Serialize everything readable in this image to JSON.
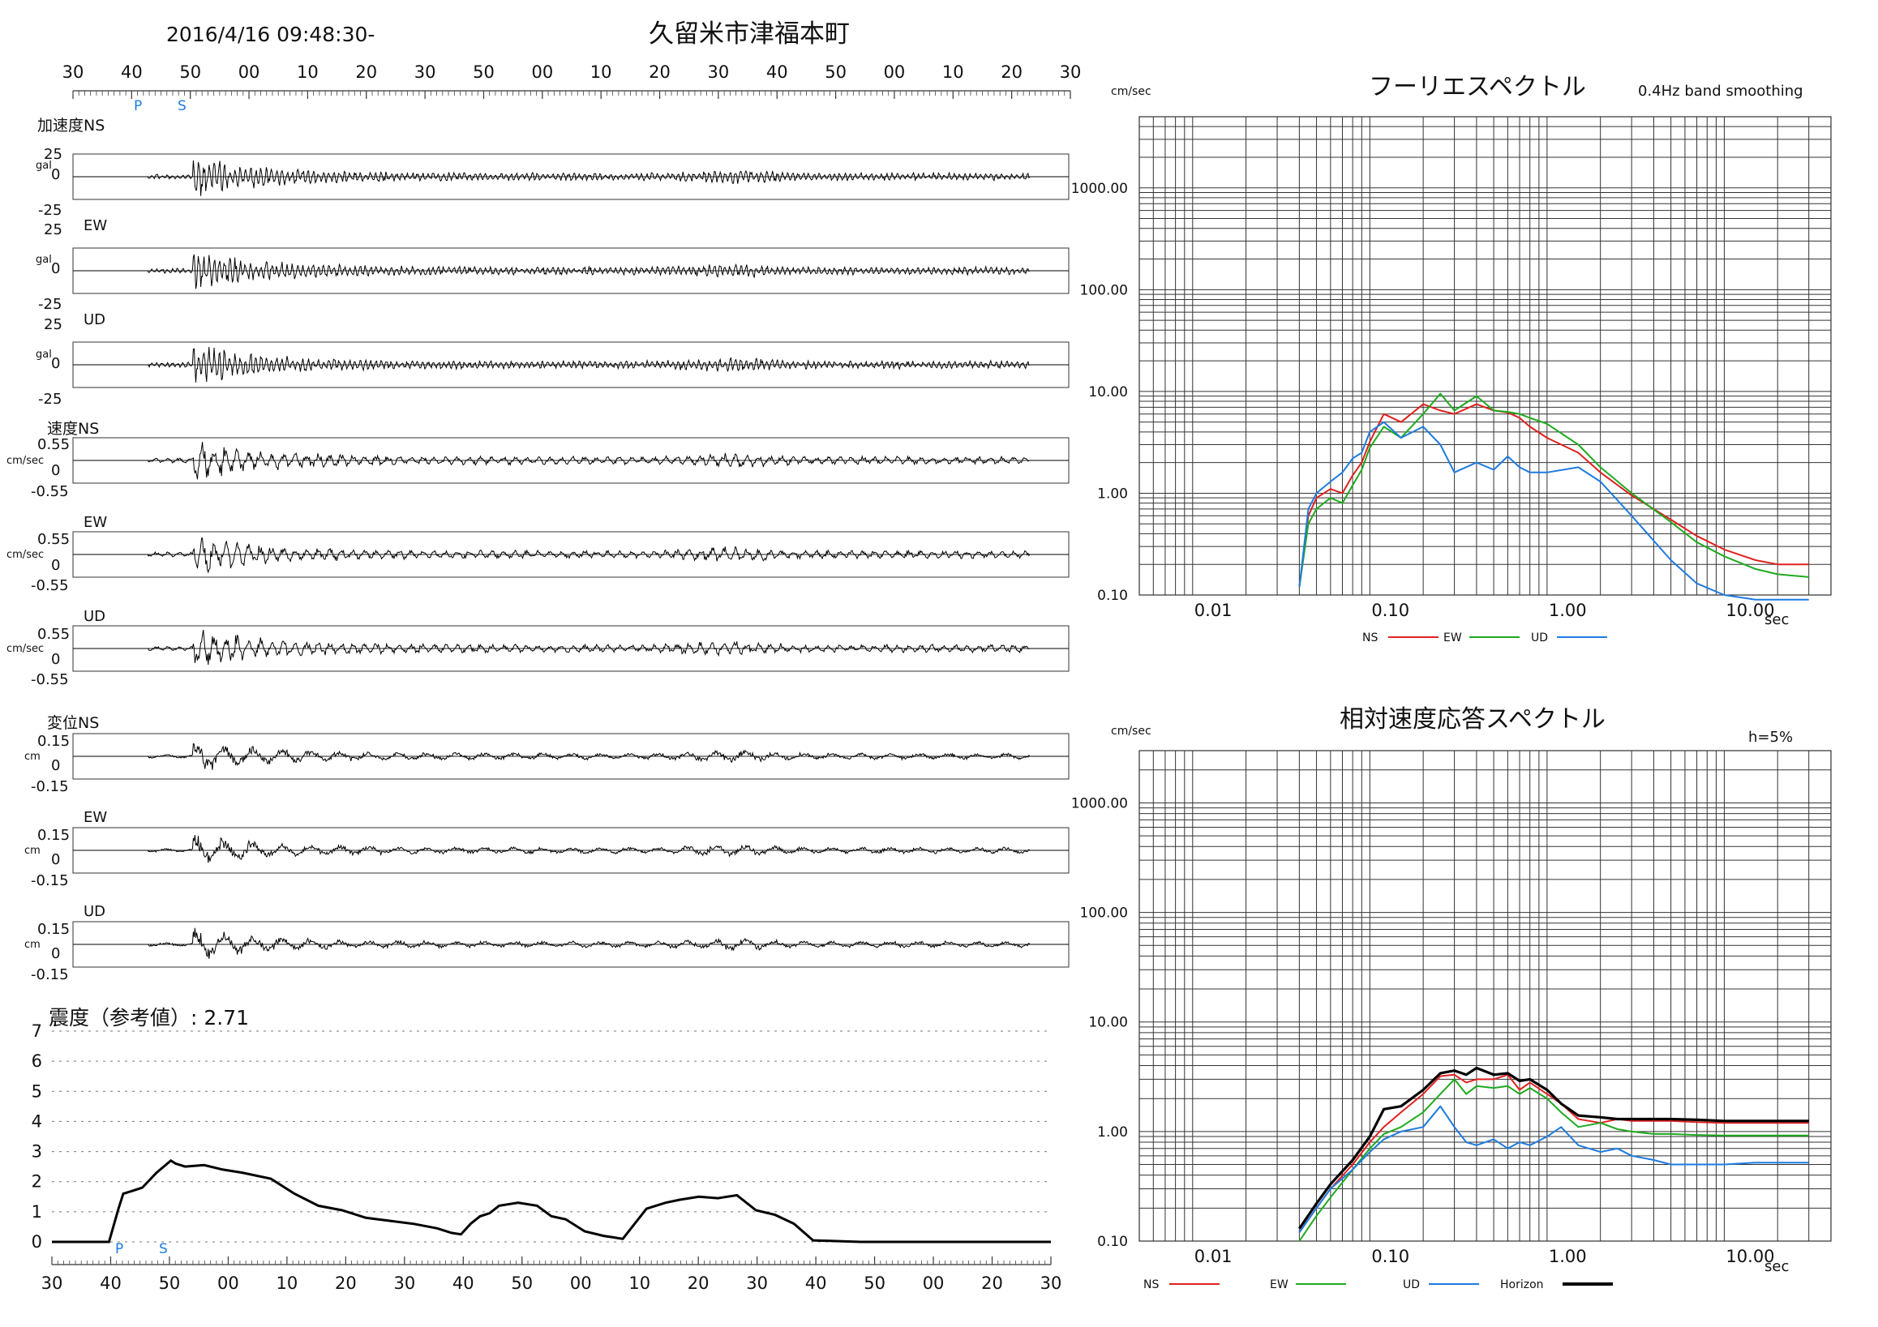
{
  "header": {
    "datetime": "2016/4/16 09:48:30-",
    "station": "久留米市津福本町",
    "p_marker": "P",
    "s_marker": "S",
    "time_ticks": [
      "30",
      "40",
      "50",
      "00",
      "10",
      "20",
      "30",
      "50",
      "00",
      "10",
      "20",
      "30",
      "40",
      "50",
      "00",
      "10",
      "20",
      "30"
    ]
  },
  "waveforms": {
    "groups": [
      {
        "title": "加速度NS",
        "unit": "gal",
        "ticks": [
          "25",
          "0",
          "-25"
        ],
        "channels": [
          "NS",
          "EW",
          "UD"
        ]
      },
      {
        "title": "速度NS",
        "unit": "cm/sec",
        "ticks": [
          "0.55",
          "0",
          "-0.55"
        ],
        "channels": [
          "NS",
          "EW",
          "UD"
        ]
      },
      {
        "title": "変位NS",
        "unit": "cm",
        "ticks": [
          "0.15",
          "0",
          "-0.15"
        ],
        "channels": [
          "NS",
          "EW",
          "UD"
        ]
      }
    ],
    "channel_labels": [
      "EW",
      "UD"
    ]
  },
  "intensity": {
    "title": "震度（参考値）: 2.71",
    "y_ticks": [
      "7",
      "6",
      "5",
      "4",
      "3",
      "2",
      "1",
      "0"
    ],
    "x_ticks": [
      "30",
      "40",
      "50",
      "00",
      "10",
      "20",
      "30",
      "40",
      "50",
      "00",
      "10",
      "20",
      "30",
      "40",
      "50",
      "00",
      "20",
      "30"
    ],
    "p_marker": "P",
    "s_marker": "S"
  },
  "fourier": {
    "title": "フーリエスペクトル",
    "note": "0.4Hz band smoothing",
    "yunit": "cm/sec",
    "xunit": "sec",
    "y_ticks": [
      "1000.00",
      "100.00",
      "10.00",
      "1.00",
      "0.10"
    ],
    "x_ticks": [
      "0.01",
      "0.10",
      "1.00",
      "10.00"
    ],
    "legend": [
      {
        "name": "NS",
        "color": "#e02020"
      },
      {
        "name": "EW",
        "color": "#1faa1f"
      },
      {
        "name": "UD",
        "color": "#1e7be0"
      }
    ]
  },
  "response": {
    "title": "相対速度応答スペクトル",
    "note": "h=5%",
    "yunit": "cm/sec",
    "xunit": "sec",
    "y_ticks": [
      "1000.00",
      "100.00",
      "10.00",
      "1.00",
      "0.10"
    ],
    "x_ticks": [
      "0.01",
      "0.10",
      "1.00",
      "10.00"
    ],
    "legend": [
      {
        "name": "NS",
        "color": "#e02020"
      },
      {
        "name": "EW",
        "color": "#1faa1f"
      },
      {
        "name": "UD",
        "color": "#1e7be0"
      },
      {
        "name": "Horizon",
        "color": "#000000"
      }
    ]
  },
  "chart_data": [
    {
      "type": "line",
      "title": "震度（参考値）: 2.71",
      "ylim": [
        0,
        7
      ],
      "series": [
        {
          "x": [
            0,
            10,
            12,
            14,
            15,
            17,
            19,
            22,
            25,
            26,
            28,
            32,
            36,
            40,
            46,
            51,
            56,
            61,
            66,
            71,
            76,
            81,
            84,
            86,
            88,
            90,
            92,
            94,
            98,
            102,
            105,
            108,
            112,
            116,
            118,
            120,
            125,
            129,
            132,
            136,
            140,
            144,
            148,
            152,
            156,
            160,
            170,
            178,
            190,
            210
          ],
          "values": [
            0,
            0,
            0,
            1.1,
            1.6,
            1.7,
            1.8,
            2.3,
            2.7,
            2.6,
            2.5,
            2.55,
            2.4,
            2.3,
            2.1,
            1.6,
            1.2,
            1.05,
            0.8,
            0.7,
            0.6,
            0.45,
            0.3,
            0.25,
            0.6,
            0.85,
            0.95,
            1.2,
            1.3,
            1.2,
            0.85,
            0.75,
            0.35,
            0.2,
            0.15,
            0.1,
            1.1,
            1.3,
            1.4,
            1.5,
            1.45,
            1.55,
            1.05,
            0.9,
            0.6,
            0.05,
            0,
            0,
            0,
            0
          ]
        }
      ]
    },
    {
      "type": "line",
      "title": "フーリエスペクトル",
      "xlabel": "sec",
      "ylabel": "cm/sec",
      "xscale": "log",
      "yscale": "log",
      "xlim": [
        0.005,
        40
      ],
      "ylim": [
        0.1,
        5000
      ],
      "x": [
        0.04,
        0.045,
        0.05,
        0.06,
        0.07,
        0.08,
        0.09,
        0.1,
        0.12,
        0.15,
        0.2,
        0.25,
        0.3,
        0.4,
        0.5,
        0.6,
        0.7,
        0.8,
        1.0,
        1.5,
        2,
        3,
        5,
        7,
        10,
        15,
        20,
        30
      ],
      "series": [
        {
          "name": "NS",
          "color": "#e02020",
          "values": [
            0.12,
            0.6,
            0.9,
            1.1,
            1.0,
            1.5,
            2.0,
            3.2,
            6.0,
            5.0,
            7.5,
            6.5,
            6.0,
            7.5,
            6.5,
            6.2,
            5.5,
            4.5,
            3.5,
            2.5,
            1.6,
            0.95,
            0.55,
            0.38,
            0.28,
            0.22,
            0.2,
            0.2
          ]
        },
        {
          "name": "EW",
          "color": "#1faa1f",
          "values": [
            0.12,
            0.5,
            0.7,
            0.9,
            0.8,
            1.2,
            1.7,
            2.8,
            4.5,
            3.5,
            6.0,
            9.5,
            6.5,
            9.0,
            6.5,
            6.3,
            6.0,
            5.5,
            4.8,
            3.0,
            1.8,
            1.0,
            0.52,
            0.33,
            0.24,
            0.18,
            0.16,
            0.15
          ]
        },
        {
          "name": "UD",
          "color": "#1e7be0",
          "values": [
            0.12,
            0.7,
            1.0,
            1.3,
            1.6,
            2.2,
            2.5,
            4.0,
            5.0,
            3.5,
            4.5,
            3.0,
            1.6,
            2.0,
            1.7,
            2.3,
            1.8,
            1.6,
            1.6,
            1.8,
            1.3,
            0.6,
            0.22,
            0.13,
            0.1,
            0.09,
            0.09,
            0.09
          ]
        }
      ]
    },
    {
      "type": "line",
      "title": "相対速度応答スペクトル",
      "xlabel": "sec",
      "ylabel": "cm/sec",
      "xscale": "log",
      "yscale": "log",
      "xlim": [
        0.005,
        40
      ],
      "ylim": [
        0.1,
        3000
      ],
      "x": [
        0.04,
        0.05,
        0.06,
        0.08,
        0.1,
        0.12,
        0.15,
        0.2,
        0.25,
        0.3,
        0.35,
        0.4,
        0.5,
        0.6,
        0.7,
        0.8,
        1.0,
        1.2,
        1.5,
        2,
        2.5,
        3,
        4,
        5,
        7,
        10,
        15,
        20,
        30
      ],
      "series": [
        {
          "name": "NS",
          "color": "#e02020",
          "values": [
            0.12,
            0.2,
            0.3,
            0.5,
            0.8,
            1.1,
            1.5,
            2.2,
            3.2,
            3.3,
            2.8,
            3.0,
            3.0,
            3.3,
            2.4,
            2.8,
            2.2,
            1.8,
            1.3,
            1.2,
            1.3,
            1.25,
            1.25,
            1.25,
            1.22,
            1.2,
            1.2,
            1.2,
            1.2
          ]
        },
        {
          "name": "EW",
          "color": "#1faa1f",
          "values": [
            0.1,
            0.17,
            0.25,
            0.45,
            0.7,
            0.95,
            1.1,
            1.5,
            2.2,
            3.0,
            2.2,
            2.6,
            2.5,
            2.6,
            2.2,
            2.5,
            2.0,
            1.5,
            1.1,
            1.2,
            1.05,
            1.0,
            0.95,
            0.95,
            0.93,
            0.92,
            0.92,
            0.92,
            0.92
          ]
        },
        {
          "name": "UD",
          "color": "#1e7be0",
          "values": [
            0.12,
            0.2,
            0.3,
            0.45,
            0.65,
            0.85,
            1.0,
            1.1,
            1.7,
            1.1,
            0.8,
            0.75,
            0.85,
            0.7,
            0.8,
            0.75,
            0.9,
            1.1,
            0.75,
            0.65,
            0.7,
            0.6,
            0.55,
            0.5,
            0.5,
            0.5,
            0.52,
            0.52,
            0.52
          ]
        },
        {
          "name": "Horizon",
          "color": "#000000",
          "values": [
            0.13,
            0.22,
            0.33,
            0.55,
            0.9,
            1.6,
            1.7,
            2.4,
            3.4,
            3.6,
            3.3,
            3.8,
            3.3,
            3.4,
            2.9,
            3.0,
            2.4,
            1.8,
            1.4,
            1.35,
            1.3,
            1.3,
            1.3,
            1.3,
            1.28,
            1.25,
            1.25,
            1.25,
            1.25
          ]
        }
      ]
    }
  ]
}
